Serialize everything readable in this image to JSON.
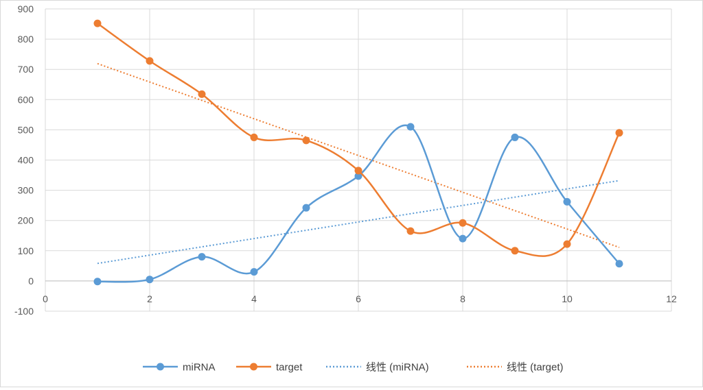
{
  "chart_data": {
    "type": "scatter",
    "xlim": [
      0,
      12
    ],
    "ylim": [
      -100,
      900
    ],
    "x_ticks": [
      "0",
      "2",
      "4",
      "6",
      "8",
      "10",
      "12"
    ],
    "y_ticks": [
      "-100",
      "0",
      "100",
      "200",
      "300",
      "400",
      "500",
      "600",
      "700",
      "800",
      "900"
    ],
    "grid": true,
    "legend_position": "bottom",
    "series": [
      {
        "name": "miRNA",
        "color": "#5B9BD5",
        "x": [
          1,
          2,
          3,
          4,
          5,
          6,
          7,
          8,
          9,
          10,
          11
        ],
        "y": [
          -2,
          5,
          80,
          30,
          242,
          347,
          510,
          140,
          475,
          262,
          57
        ]
      },
      {
        "name": "target",
        "color": "#ED7D31",
        "x": [
          1,
          2,
          3,
          4,
          5,
          6,
          7,
          8,
          9,
          10,
          11
        ],
        "y": [
          852,
          728,
          618,
          475,
          465,
          365,
          165,
          192,
          100,
          122,
          490
        ]
      }
    ],
    "trendlines": [
      {
        "name": "线性 (miRNA)",
        "color": "#5B9BD5",
        "x": [
          1,
          11
        ],
        "y": [
          58,
          332
        ]
      },
      {
        "name": "线性 (target)",
        "color": "#ED7D31",
        "x": [
          1,
          11
        ],
        "y": [
          719,
          111
        ]
      }
    ]
  }
}
